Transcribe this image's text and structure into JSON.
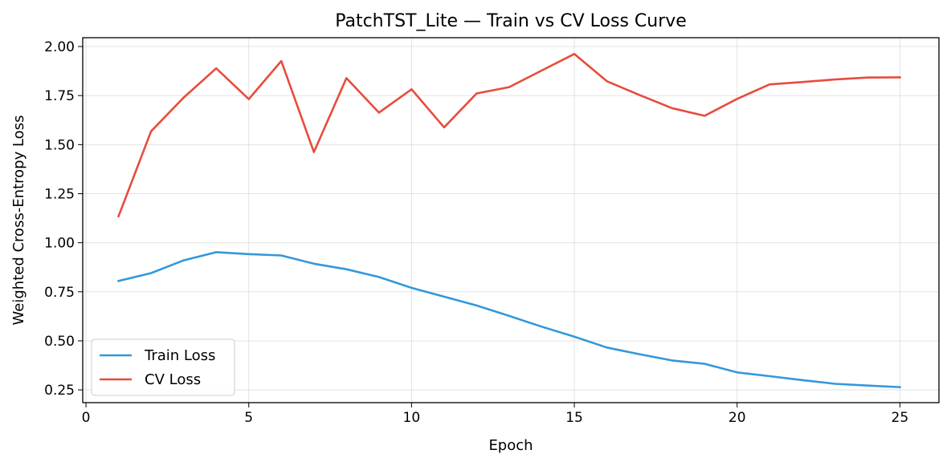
{
  "chart_data": {
    "type": "line",
    "title": "PatchTST_Lite — Train vs CV Loss Curve",
    "xlabel": "Epoch",
    "ylabel": "Weighted Cross-Entropy Loss",
    "xlim": [
      -0.1,
      26.2
    ],
    "ylim": [
      0.185,
      2.045
    ],
    "xticks": [
      0,
      5,
      10,
      15,
      20,
      25
    ],
    "xtick_labels": [
      "0",
      "5",
      "10",
      "15",
      "20",
      "25"
    ],
    "yticks": [
      0.25,
      0.5,
      0.75,
      1.0,
      1.25,
      1.5,
      1.75,
      2.0
    ],
    "ytick_labels": [
      "0.25",
      "0.50",
      "0.75",
      "1.00",
      "1.25",
      "1.50",
      "1.75",
      "2.00"
    ],
    "grid": true,
    "legend_position": "lower-left",
    "x": [
      1,
      2,
      3,
      4,
      5,
      6,
      7,
      8,
      9,
      10,
      11,
      12,
      13,
      14,
      15,
      16,
      17,
      18,
      19,
      20,
      21,
      22,
      23,
      24,
      25
    ],
    "series": [
      {
        "name": "Train Loss",
        "color": "#3498db",
        "values": [
          0.805,
          0.845,
          0.91,
          0.952,
          0.942,
          0.935,
          0.893,
          0.865,
          0.825,
          0.77,
          0.725,
          0.68,
          0.627,
          0.572,
          0.521,
          0.466,
          0.432,
          0.4,
          0.383,
          0.339,
          0.32,
          0.3,
          0.281,
          0.272,
          0.264
        ]
      },
      {
        "name": "CV Loss",
        "color": "#e74c3c",
        "values": [
          1.135,
          1.568,
          1.74,
          1.889,
          1.732,
          1.926,
          1.462,
          1.839,
          1.663,
          1.782,
          1.588,
          1.761,
          1.793,
          1.878,
          1.962,
          1.823,
          1.753,
          1.686,
          1.647,
          1.733,
          1.807,
          1.819,
          1.832,
          1.842,
          1.843
        ]
      }
    ]
  }
}
